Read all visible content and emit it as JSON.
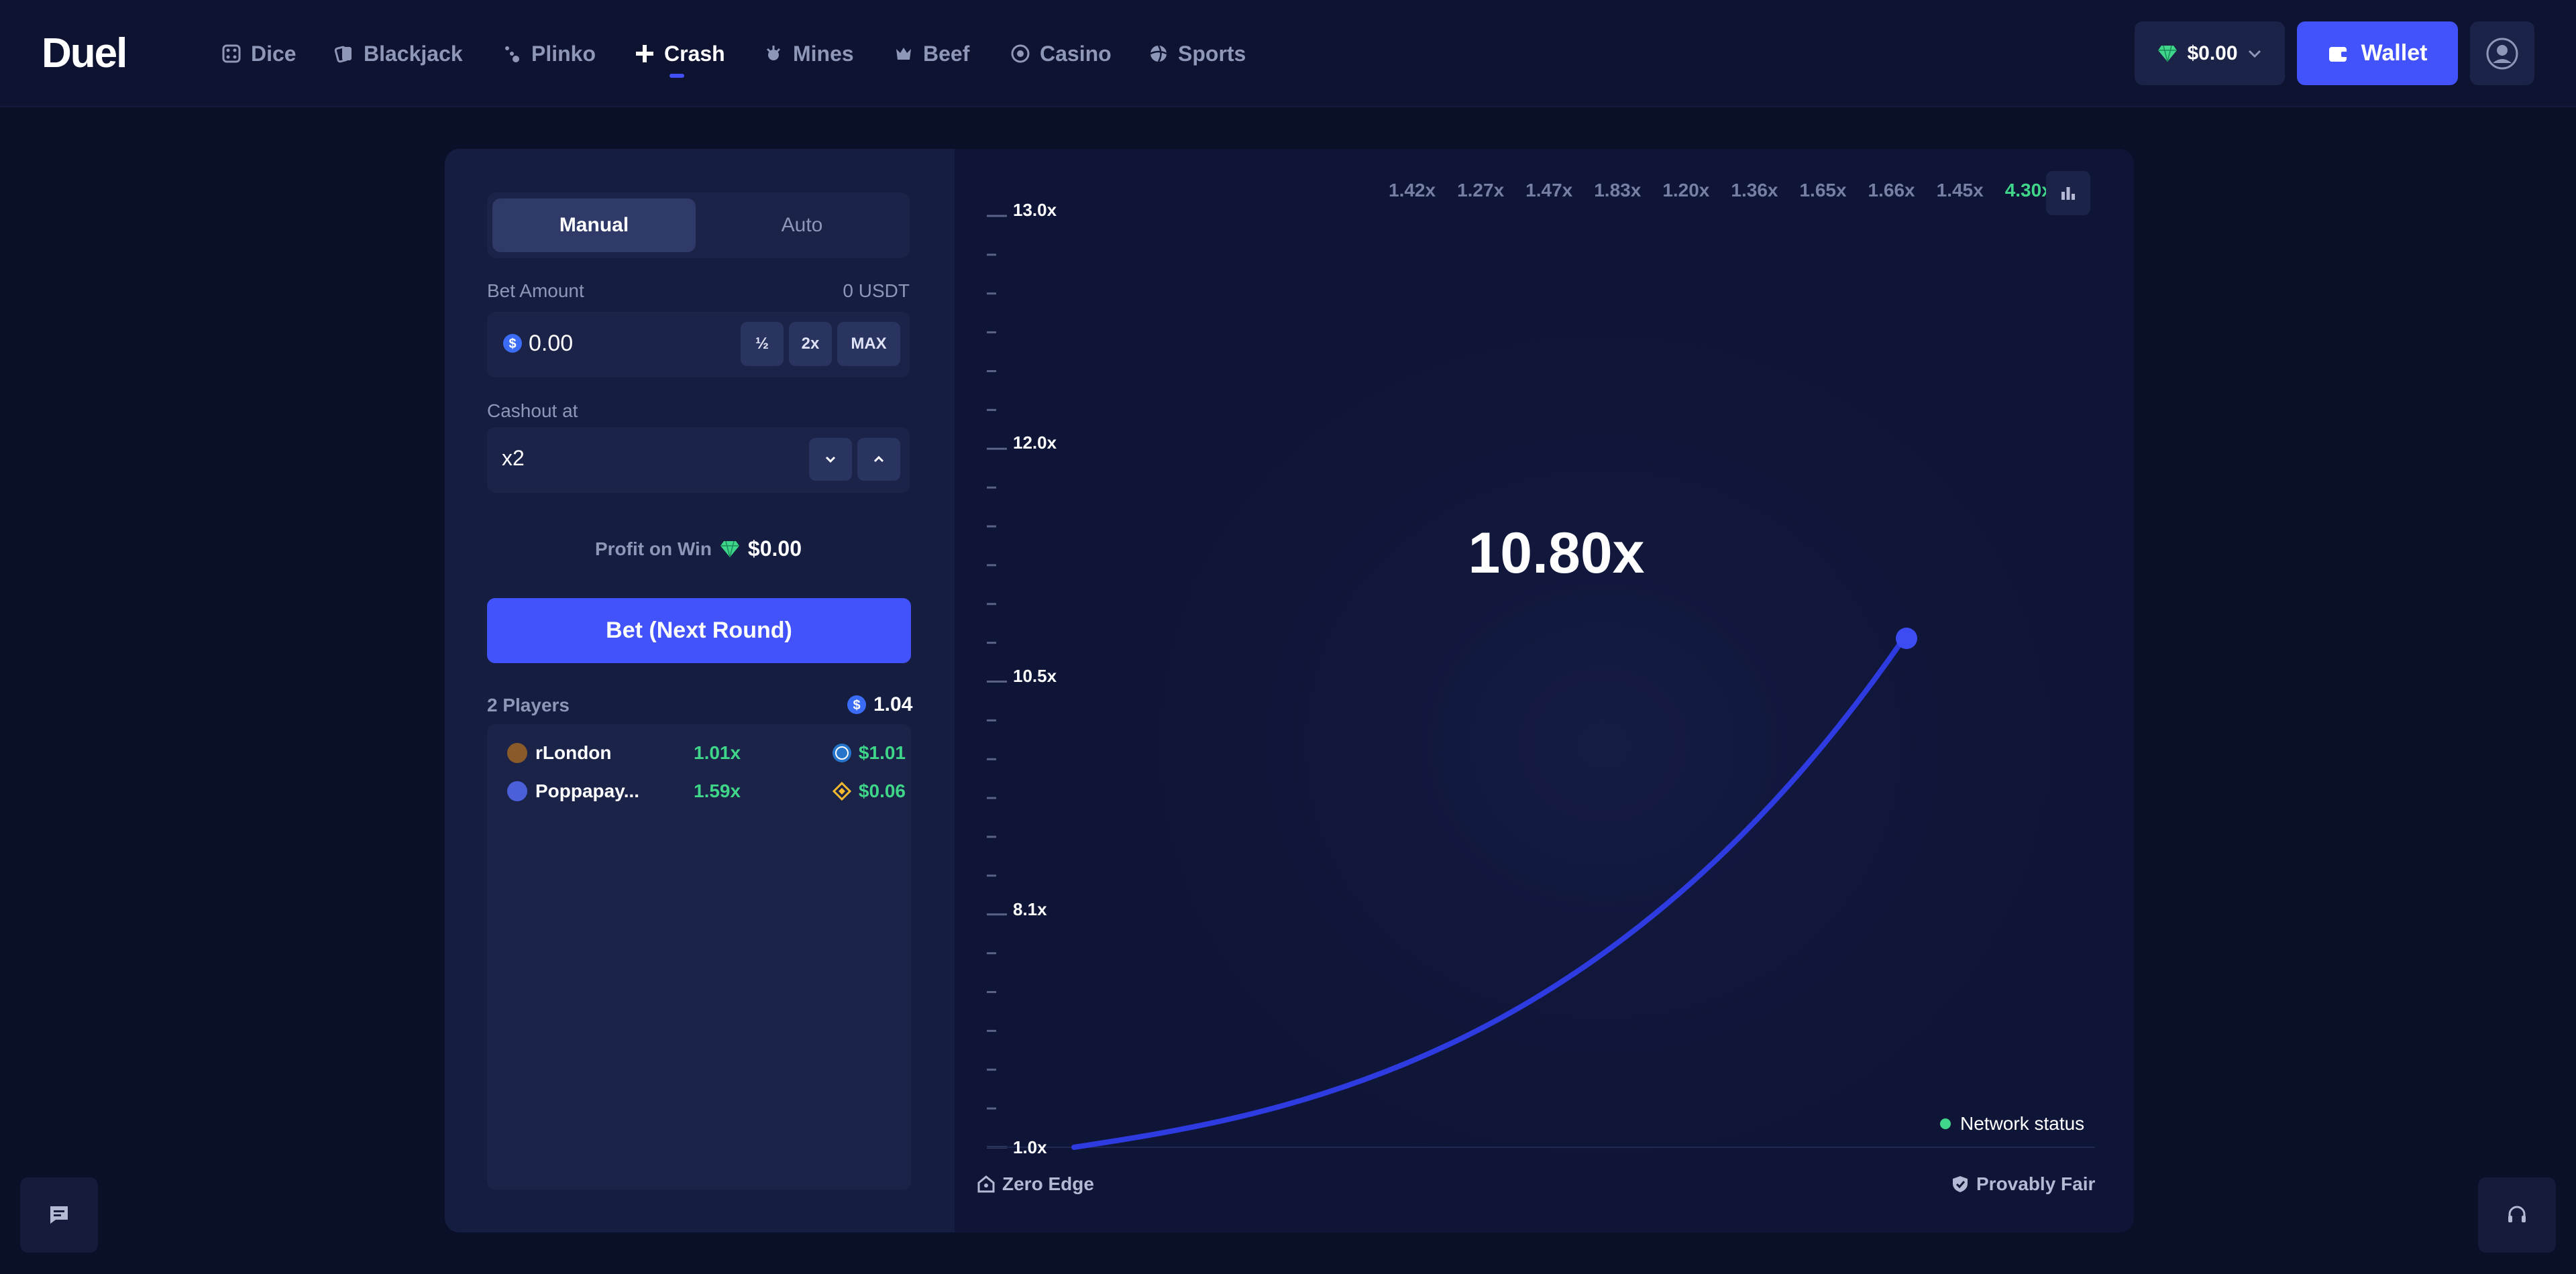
{
  "brand": {
    "logo_text": "Duel"
  },
  "nav": {
    "items": [
      {
        "label": "Dice",
        "icon": "dice-icon"
      },
      {
        "label": "Blackjack",
        "icon": "cards-icon"
      },
      {
        "label": "Plinko",
        "icon": "plinko-icon"
      },
      {
        "label": "Crash",
        "icon": "crash-icon",
        "active": true
      },
      {
        "label": "Mines",
        "icon": "mines-icon"
      },
      {
        "label": "Beef",
        "icon": "beef-icon"
      },
      {
        "label": "Casino",
        "icon": "casino-chip-icon"
      },
      {
        "label": "Sports",
        "icon": "sports-ball-icon"
      }
    ]
  },
  "header": {
    "balance": "$0.00",
    "wallet_label": "Wallet"
  },
  "bet_panel": {
    "tabs": {
      "manual": "Manual",
      "auto": "Auto",
      "active": "Manual"
    },
    "bet_amount": {
      "label": "Bet Amount",
      "balance_hint": "0 USDT",
      "value": "0.00",
      "half_label": "½",
      "double_label": "2x",
      "max_label": "MAX"
    },
    "cashout": {
      "label": "Cashout at",
      "value": "x2"
    },
    "profit": {
      "label": "Profit on Win",
      "value": "$0.00"
    },
    "bet_button_label": "Bet (Next Round)",
    "players": {
      "count_label": "2 Players",
      "total": "1.04",
      "rows": [
        {
          "name": "rLondon",
          "multiplier": "1.01x",
          "payout": "$1.01",
          "coin": "usdc-icon"
        },
        {
          "name": "Poppapay...",
          "multiplier": "1.59x",
          "payout": "$0.06",
          "coin": "bnb-icon"
        }
      ]
    }
  },
  "game": {
    "history": [
      "1.42x",
      "1.27x",
      "1.47x",
      "1.83x",
      "1.20x",
      "1.36x",
      "1.65x",
      "1.66x",
      "1.45x",
      "4.30x"
    ],
    "history_highlight_index": 9,
    "current_multiplier": "10.80x",
    "y_axis_labels": [
      "13.0x",
      "12.0x",
      "10.5x",
      "8.1x",
      "1.0x"
    ],
    "network_status_label": "Network status",
    "zero_edge_label": "Zero Edge",
    "provably_fair_label": "Provably Fair",
    "colors": {
      "accent": "#4353fb",
      "curve": "#2d3be0",
      "win": "#3fd68a",
      "background": "#0b1029"
    }
  }
}
